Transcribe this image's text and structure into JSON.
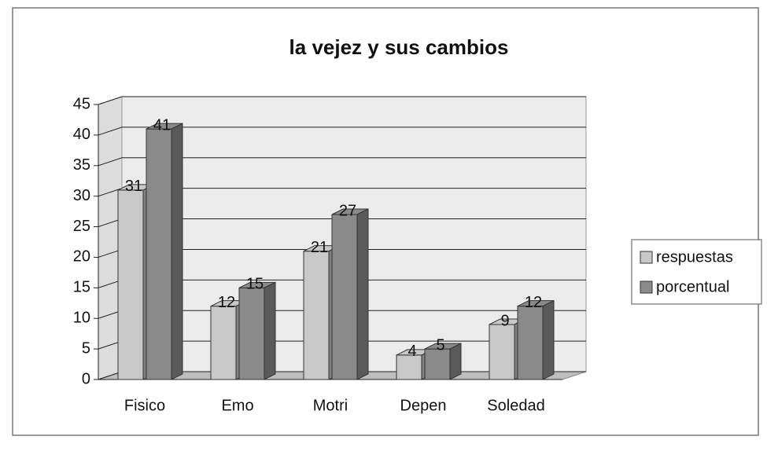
{
  "chart_data": {
    "type": "bar3d",
    "title": "la vejez y sus cambios",
    "categories": [
      "Fisico",
      "Emo",
      "Motri",
      "Depen",
      "Soledad"
    ],
    "series": [
      {
        "name": "respuestas",
        "color": "#c8c8c8",
        "values": [
          31,
          12,
          21,
          4,
          9
        ]
      },
      {
        "name": "porcentual",
        "color": "#8a8a8a",
        "values": [
          41,
          15,
          27,
          5,
          12
        ]
      }
    ],
    "ylim": [
      0,
      45
    ],
    "yticks": [
      0,
      5,
      10,
      15,
      20,
      25,
      30,
      35,
      40,
      45
    ],
    "grid": true,
    "legend": "right"
  }
}
